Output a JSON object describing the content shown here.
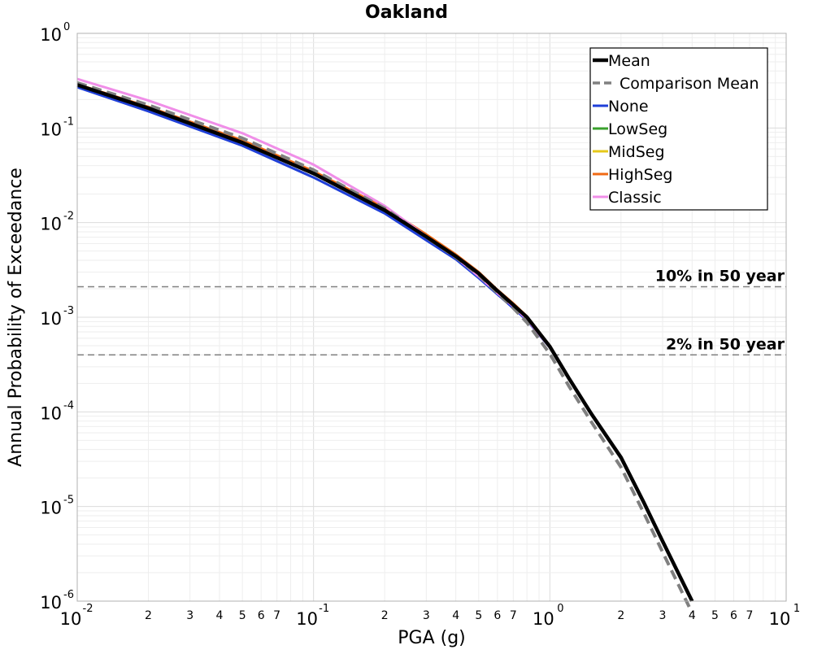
{
  "chart_data": {
    "type": "line",
    "title": "Oakland",
    "xlabel": "PGA (g)",
    "ylabel": "Annual Probability of Exceedance",
    "xscale": "log",
    "yscale": "log",
    "xlim": [
      0.01,
      10
    ],
    "ylim": [
      1e-06,
      1
    ],
    "grid": true,
    "legend_position": "top-right",
    "x_major_ticks": [
      {
        "value": 0.01,
        "base": "10",
        "exp": "-2"
      },
      {
        "value": 0.1,
        "base": "10",
        "exp": "-1"
      },
      {
        "value": 1,
        "base": "10",
        "exp": "0"
      },
      {
        "value": 10,
        "base": "10",
        "exp": "1"
      }
    ],
    "y_major_ticks": [
      {
        "value": 1,
        "base": "10",
        "exp": "0"
      },
      {
        "value": 0.1,
        "base": "10",
        "exp": "-1"
      },
      {
        "value": 0.01,
        "base": "10",
        "exp": "-2"
      },
      {
        "value": 0.001,
        "base": "10",
        "exp": "-3"
      },
      {
        "value": 0.0001,
        "base": "10",
        "exp": "-4"
      },
      {
        "value": 1e-05,
        "base": "10",
        "exp": "-5"
      },
      {
        "value": 1e-06,
        "base": "10",
        "exp": "-6"
      }
    ],
    "x_minor_tick_labels": [
      "2",
      "3",
      "4",
      "5",
      "6",
      "7"
    ],
    "reference_lines": [
      {
        "label": "10% in 50 year",
        "y": 0.0021,
        "color": "#808080"
      },
      {
        "label": "2% in 50 year",
        "y": 0.0004,
        "color": "#808080"
      }
    ],
    "series": [
      {
        "name": "None",
        "color": "#1f3fd8",
        "width": 3,
        "dash": "",
        "x": [
          0.01,
          0.02,
          0.05,
          0.1,
          0.2,
          0.3,
          0.4,
          0.5,
          0.6,
          0.7,
          0.8,
          1.0,
          1.2,
          1.5,
          2.0,
          2.5,
          3.0,
          4.0
        ],
        "y": [
          0.27,
          0.15,
          0.065,
          0.03,
          0.0125,
          0.0065,
          0.0041,
          0.0026,
          0.00175,
          0.00125,
          0.00093,
          0.00048,
          0.00023,
          9.5e-05,
          3.3e-05,
          1.1e-05,
          4.3e-06,
          1e-06
        ]
      },
      {
        "name": "LowSeg",
        "color": "#3aa02c",
        "width": 3,
        "dash": "",
        "x": [
          0.01,
          0.02,
          0.05,
          0.1,
          0.2,
          0.3,
          0.4,
          0.5,
          0.6,
          0.7,
          0.8,
          1.0,
          1.2,
          1.5,
          2.0,
          2.5,
          3.0,
          4.0
        ],
        "y": [
          0.29,
          0.165,
          0.072,
          0.034,
          0.0138,
          0.0072,
          0.0044,
          0.0029,
          0.0019,
          0.00135,
          0.001,
          0.00049,
          0.00023,
          9.5e-05,
          3.3e-05,
          1.1e-05,
          4.3e-06,
          1e-06
        ]
      },
      {
        "name": "MidSeg",
        "color": "#e6c81a",
        "width": 3,
        "dash": "",
        "x": [
          0.01,
          0.02,
          0.05,
          0.1,
          0.2,
          0.3,
          0.4,
          0.5,
          0.6,
          0.7,
          0.8,
          1.0,
          1.2,
          1.5,
          2.0,
          2.5,
          3.0,
          4.0
        ],
        "y": [
          0.29,
          0.165,
          0.073,
          0.034,
          0.014,
          0.0073,
          0.0045,
          0.0029,
          0.0019,
          0.00137,
          0.001,
          0.00049,
          0.00023,
          9.5e-05,
          3.3e-05,
          1.1e-05,
          4.3e-06,
          1e-06
        ]
      },
      {
        "name": "HighSeg",
        "color": "#f06a14",
        "width": 3,
        "dash": "",
        "x": [
          0.01,
          0.02,
          0.05,
          0.1,
          0.2,
          0.3,
          0.4,
          0.5,
          0.6,
          0.7,
          0.8,
          1.0,
          1.2,
          1.5,
          2.0,
          2.5,
          3.0,
          4.0
        ],
        "y": [
          0.29,
          0.167,
          0.074,
          0.035,
          0.0143,
          0.0075,
          0.0046,
          0.003,
          0.00195,
          0.0014,
          0.00102,
          0.0005,
          0.00023,
          9.5e-05,
          3.3e-05,
          1.1e-05,
          4.3e-06,
          1e-06
        ]
      },
      {
        "name": "Classic",
        "color": "#f08ee8",
        "width": 3,
        "dash": "",
        "x": [
          0.01,
          0.02,
          0.05,
          0.1,
          0.2,
          0.3,
          0.4,
          0.5,
          0.6,
          0.7,
          0.8,
          1.0
        ],
        "y": [
          0.33,
          0.195,
          0.088,
          0.041,
          0.015,
          0.0072,
          0.0043,
          0.0027,
          0.0018,
          0.0013,
          0.00095,
          0.00048
        ]
      },
      {
        "name": "Comparison Mean",
        "color": "#808080",
        "width": 4,
        "dash": "12,7",
        "x": [
          0.01,
          0.02,
          0.05,
          0.1,
          0.2,
          0.3,
          0.4,
          0.5,
          0.6,
          0.7,
          0.8,
          1.0,
          1.2,
          1.5,
          2.0,
          2.5,
          3.0,
          4.0
        ],
        "y": [
          0.3,
          0.175,
          0.078,
          0.036,
          0.0142,
          0.007,
          0.0043,
          0.0028,
          0.0018,
          0.00125,
          0.00088,
          0.00041,
          0.00019,
          7.8e-05,
          2.6e-05,
          8.5e-06,
          3.3e-06,
          7.5e-07
        ]
      },
      {
        "name": "Mean",
        "color": "#000000",
        "width": 4.5,
        "dash": "",
        "x": [
          0.01,
          0.02,
          0.05,
          0.1,
          0.2,
          0.3,
          0.4,
          0.5,
          0.6,
          0.7,
          0.8,
          1.0,
          1.2,
          1.5,
          2.0,
          2.5,
          3.0,
          4.0
        ],
        "y": [
          0.285,
          0.162,
          0.07,
          0.033,
          0.0135,
          0.0071,
          0.0044,
          0.0029,
          0.0019,
          0.00135,
          0.001,
          0.00049,
          0.00023,
          9.5e-05,
          3.3e-05,
          1.1e-05,
          4.3e-06,
          1e-06
        ]
      }
    ],
    "legend": [
      {
        "name": "Mean",
        "color": "#000000",
        "width": 4.5,
        "dash": ""
      },
      {
        "name": "Comparison Mean",
        "color": "#808080",
        "width": 3.5,
        "dash": "9,5"
      },
      {
        "name": "None",
        "color": "#1f3fd8",
        "width": 3,
        "dash": ""
      },
      {
        "name": "LowSeg",
        "color": "#3aa02c",
        "width": 3,
        "dash": ""
      },
      {
        "name": "MidSeg",
        "color": "#e6c81a",
        "width": 3,
        "dash": ""
      },
      {
        "name": "HighSeg",
        "color": "#f06a14",
        "width": 3,
        "dash": ""
      },
      {
        "name": "Classic",
        "color": "#f08ee8",
        "width": 3,
        "dash": ""
      }
    ]
  }
}
